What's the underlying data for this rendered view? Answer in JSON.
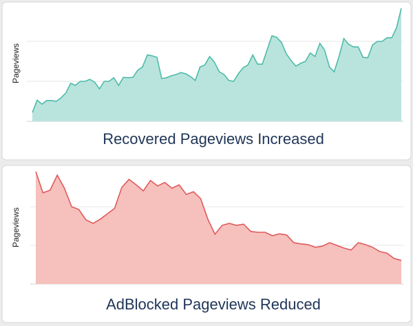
{
  "chart_data": [
    {
      "type": "area",
      "title": "Recovered Pageviews Increased",
      "y_label": "Pageviews",
      "categories": [
        null,
        null,
        null,
        null,
        null,
        null,
        null,
        null,
        null,
        null,
        null,
        null,
        null,
        null,
        null,
        null,
        null,
        null,
        null,
        null,
        null,
        null,
        null,
        null,
        null,
        null,
        null,
        null,
        null,
        null,
        null,
        null,
        null,
        null,
        null,
        null,
        null,
        null,
        null,
        null,
        null,
        null,
        null,
        null,
        null,
        null,
        null,
        null,
        null,
        null,
        null,
        null,
        null,
        null,
        null,
        null,
        null,
        null,
        null,
        null,
        null,
        null,
        null,
        null,
        null,
        null,
        null,
        null,
        null,
        null,
        null,
        null,
        null,
        null,
        null,
        null,
        null,
        null
      ],
      "values": [
        0.22,
        0.53,
        0.43,
        0.52,
        0.52,
        0.5,
        0.59,
        0.71,
        0.95,
        0.9,
        1.0,
        1.0,
        1.05,
        0.98,
        0.81,
        1.0,
        1.0,
        1.09,
        0.9,
        1.1,
        1.09,
        1.1,
        1.28,
        1.36,
        1.66,
        1.64,
        1.6,
        1.07,
        1.09,
        1.14,
        1.17,
        1.22,
        1.19,
        1.12,
        1.02,
        1.36,
        1.41,
        1.62,
        1.48,
        1.24,
        1.17,
        1.02,
        1.0,
        1.19,
        1.34,
        1.41,
        1.66,
        1.43,
        1.43,
        1.79,
        2.14,
        2.1,
        1.97,
        1.69,
        1.52,
        1.38,
        1.45,
        1.5,
        1.71,
        1.62,
        1.95,
        1.78,
        1.36,
        1.24,
        1.62,
        2.07,
        1.93,
        1.86,
        1.86,
        1.6,
        1.59,
        1.91,
        2.0,
        2.0,
        2.09,
        2.09,
        2.34,
        2.83
      ],
      "color": "#4dbba8",
      "fill_color": "#b9e4dd",
      "ylim": [
        0,
        3
      ],
      "yticks": [
        0,
        1,
        2
      ],
      "grid": true
    },
    {
      "type": "area",
      "title": "AdBlocked Pageviews Reduced",
      "y_label": "Pageviews",
      "categories": [
        null,
        null,
        null,
        null,
        null,
        null,
        null,
        null,
        null,
        null,
        null,
        null,
        null,
        null,
        null,
        null,
        null,
        null,
        null,
        null,
        null,
        null,
        null,
        null,
        null,
        null,
        null,
        null,
        null,
        null,
        null,
        null,
        null,
        null,
        null,
        null,
        null,
        null,
        null,
        null,
        null,
        null,
        null,
        null,
        null,
        null,
        null,
        null,
        null,
        null,
        null,
        null
      ],
      "values": [
        2.91,
        2.36,
        2.43,
        2.82,
        2.48,
        2.0,
        1.93,
        1.66,
        1.57,
        1.68,
        1.82,
        1.96,
        2.5,
        2.71,
        2.57,
        2.41,
        2.68,
        2.54,
        2.63,
        2.48,
        2.57,
        2.32,
        2.39,
        2.21,
        1.68,
        1.29,
        1.52,
        1.57,
        1.52,
        1.55,
        1.36,
        1.34,
        1.34,
        1.25,
        1.3,
        1.27,
        1.07,
        1.04,
        1.02,
        0.95,
        0.98,
        1.07,
        1.0,
        0.93,
        0.88,
        1.07,
        1.02,
        0.95,
        0.84,
        0.8,
        0.66,
        0.61
      ],
      "color": "#e05a5a",
      "fill_color": "#f6c0bd",
      "ylim": [
        0,
        3
      ],
      "yticks": [
        0,
        1,
        2
      ],
      "grid": true
    }
  ]
}
